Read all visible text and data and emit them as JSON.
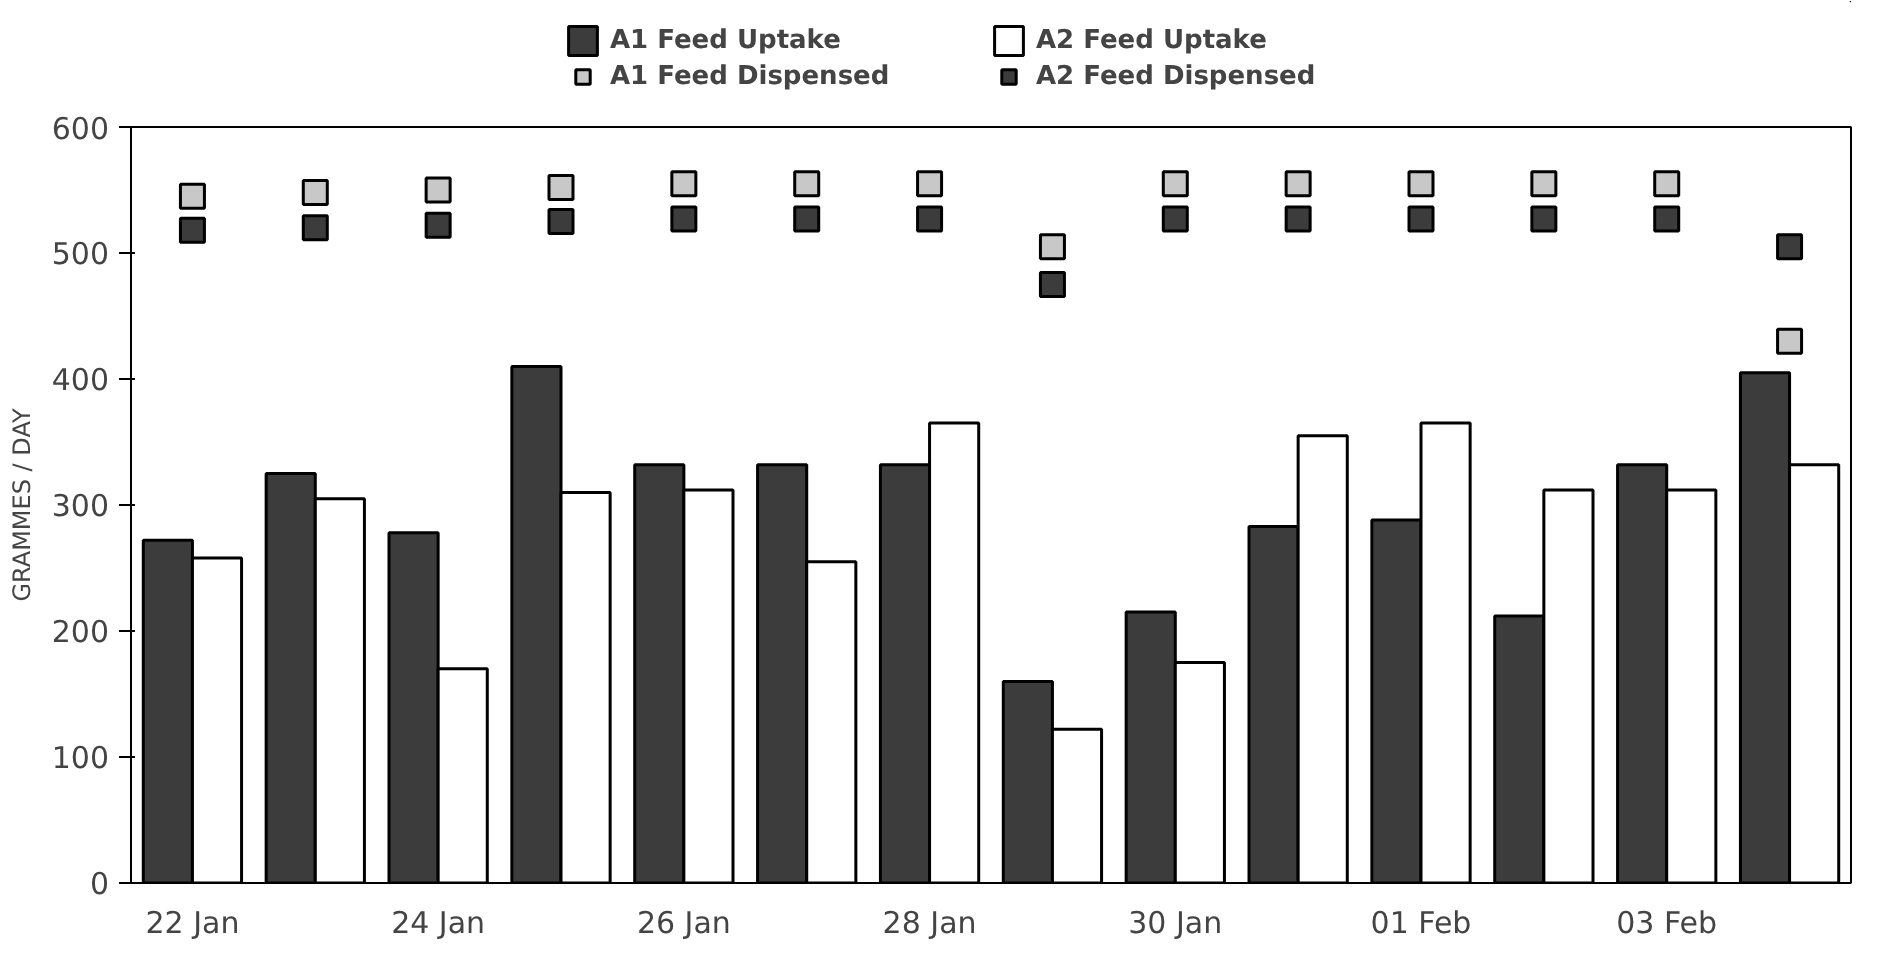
{
  "chart_data": {
    "type": "bar",
    "ylabel": "GRAMMES / DAY",
    "categories": [
      "22 Jan",
      null,
      "24 Jan",
      null,
      "26 Jan",
      null,
      "28 Jan",
      null,
      "30 Jan",
      null,
      "01 Feb",
      null,
      "03 Feb",
      null
    ],
    "series": [
      {
        "name": "A1 Feed Uptake",
        "color": "#3c3c3c",
        "values": [
          272,
          325,
          278,
          410,
          332,
          332,
          332,
          160,
          215,
          283,
          288,
          212,
          332,
          405
        ]
      },
      {
        "name": "A2 Feed Uptake",
        "color": "#ffffff",
        "values": [
          258,
          305,
          170,
          310,
          312,
          255,
          365,
          122,
          175,
          355,
          365,
          312,
          312,
          332
        ]
      },
      {
        "name": "A1 Feed Dispensed",
        "type": "scatter",
        "marker": "square",
        "color": "#c8c8c8",
        "values": [
          545,
          548,
          550,
          552,
          555,
          555,
          555,
          505,
          555,
          555,
          555,
          555,
          555,
          430
        ]
      },
      {
        "name": "A2 Feed Dispensed",
        "type": "scatter",
        "marker": "square",
        "color": "#3c3c3c",
        "values": [
          518,
          520,
          522,
          525,
          527,
          527,
          527,
          475,
          527,
          527,
          527,
          527,
          527,
          505
        ]
      }
    ],
    "ylim": [
      0,
      600
    ],
    "yticks": [
      0,
      100,
      200,
      300,
      400,
      500,
      600
    ],
    "grid": false,
    "legend": "top"
  }
}
